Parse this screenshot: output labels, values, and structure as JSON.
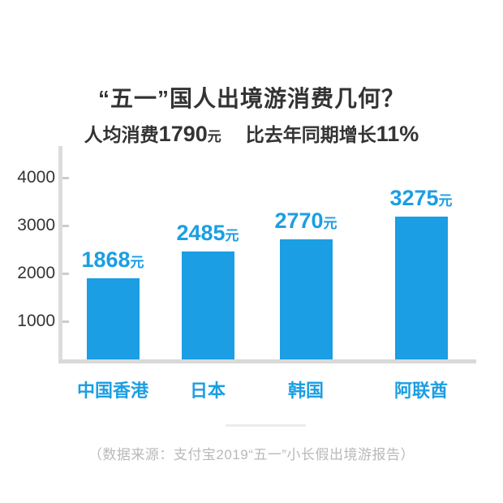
{
  "page": {
    "background": "#ffffff"
  },
  "colors": {
    "accent_blue": "#1b9ee3",
    "dark_text": "#333333",
    "axis_gray": "#dcdcdc",
    "baseline_gray": "#d9d9d9",
    "tick_gray": "#cccccc",
    "muted_gray": "#b9b9b9",
    "divider_gray": "#ececec"
  },
  "header": {
    "title": "“五一”国人出境游消费几何？",
    "subtitle": {
      "prefix": "人均消费",
      "value1": "1790",
      "unit1": "元",
      "middle": "比去年同期增长",
      "value2": "11%"
    }
  },
  "chart_data": {
    "type": "bar",
    "title": "“五一”国人出境游消费几何？",
    "categories": [
      "中国香港",
      "日本",
      "韩国",
      "阿联酋"
    ],
    "values": [
      1868,
      2485,
      2770,
      3275
    ],
    "value_unit": "元",
    "y_ticks": [
      1000,
      2000,
      3000,
      4000
    ],
    "ylim": [
      0,
      4000
    ],
    "xlabel": "",
    "ylabel": "",
    "grid": "off",
    "legend": "none",
    "bar_color": "#1b9ee3"
  },
  "footer": {
    "source": "（数据来源：支付宝2019“五一”小长假出境游报告）"
  }
}
